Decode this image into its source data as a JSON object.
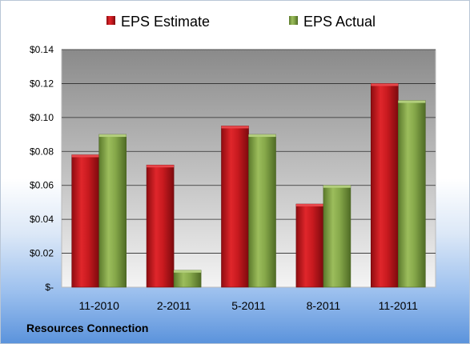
{
  "company_name": "Resources Connection",
  "colors": {
    "estimate": "#c0141a",
    "actual": "#7fa043",
    "plot_bg_top": "#8a8a8a",
    "plot_bg_bottom": "#f4f4f4"
  },
  "chart_data": {
    "type": "bar",
    "categories": [
      "11-2010",
      "2-2011",
      "5-2011",
      "8-2011",
      "11-2011"
    ],
    "series": [
      {
        "name": "EPS Estimate",
        "values": [
          0.078,
          0.072,
          0.095,
          0.049,
          0.12
        ]
      },
      {
        "name": "EPS Actual",
        "values": [
          0.09,
          0.01,
          0.09,
          0.06,
          0.11
        ]
      }
    ],
    "yticks": [
      "$-",
      "$0.02",
      "$0.04",
      "$0.06",
      "$0.08",
      "$0.10",
      "$0.12",
      "$0.14"
    ],
    "ylim": [
      0,
      0.14
    ],
    "grid": true,
    "legend_position": "top-center"
  }
}
